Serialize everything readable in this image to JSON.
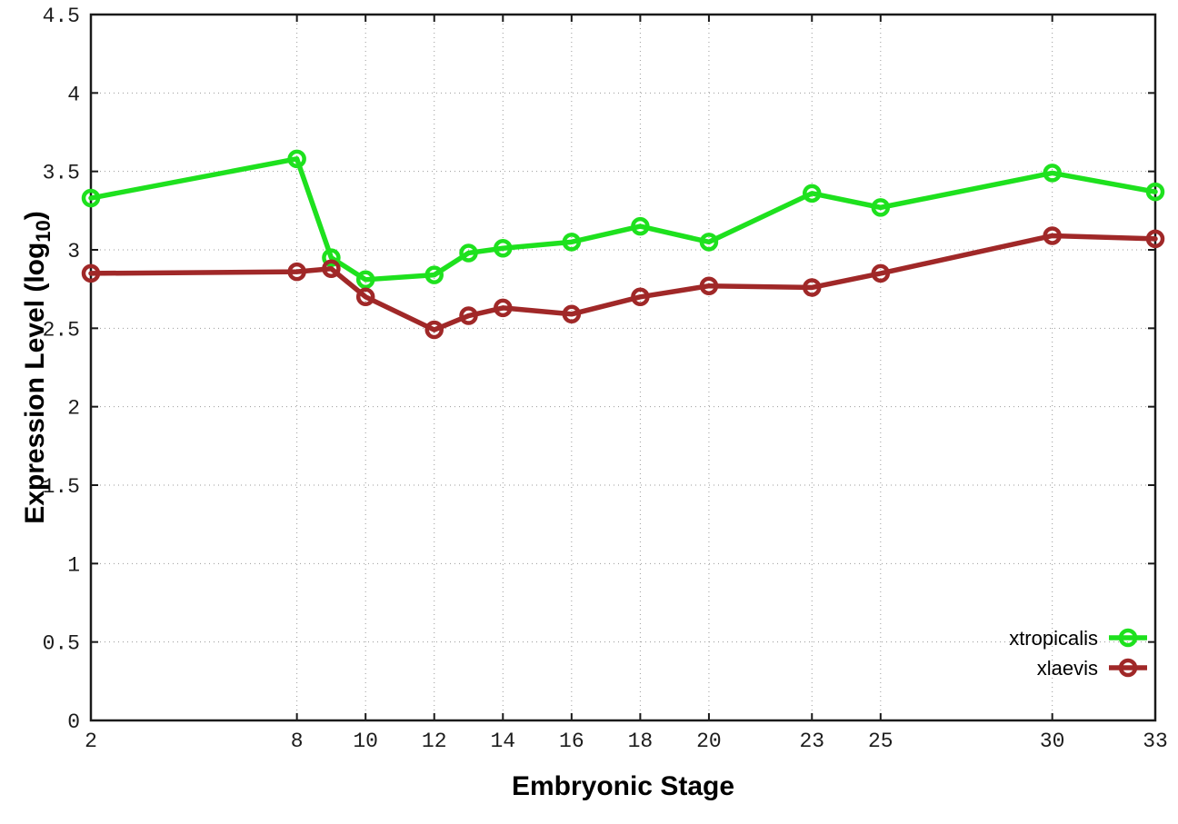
{
  "figure": {
    "background_color": "#ffffff",
    "border_color": "#1a1a1a",
    "grid_color": "#999999",
    "tick_text_color": "#1c1c1c"
  },
  "chart_data": {
    "type": "line",
    "title": "",
    "xlabel": "Embryonic Stage",
    "ylabel": "Expression Level (log10)",
    "ylabel_parts": {
      "pre": "Expression Level (log",
      "sub": "10",
      "post": ")"
    },
    "xlim": [
      2,
      33
    ],
    "ylim": [
      0,
      4.5
    ],
    "x_ticks": [
      2,
      8,
      10,
      12,
      14,
      16,
      18,
      20,
      23,
      25,
      30,
      33
    ],
    "y_ticks": [
      0,
      0.5,
      1,
      1.5,
      2,
      2.5,
      3,
      3.5,
      4,
      4.5
    ],
    "grid": true,
    "grid_style": "dotted",
    "legend_position": "inside-bottom-right",
    "marker": "open-circle",
    "x": [
      2,
      8,
      9,
      10,
      12,
      13,
      14,
      16,
      18,
      20,
      23,
      25,
      30,
      33
    ],
    "series": [
      {
        "name": "xtropicalis",
        "color": "#1ee11e",
        "values": [
          3.33,
          3.58,
          2.95,
          2.81,
          2.84,
          2.98,
          3.01,
          3.05,
          3.15,
          3.05,
          3.36,
          3.27,
          3.49,
          3.37
        ]
      },
      {
        "name": "xlaevis",
        "color": "#a02828",
        "values": [
          2.85,
          2.86,
          2.88,
          2.7,
          2.49,
          2.58,
          2.63,
          2.59,
          2.7,
          2.77,
          2.76,
          2.85,
          3.09,
          3.07
        ]
      }
    ]
  }
}
